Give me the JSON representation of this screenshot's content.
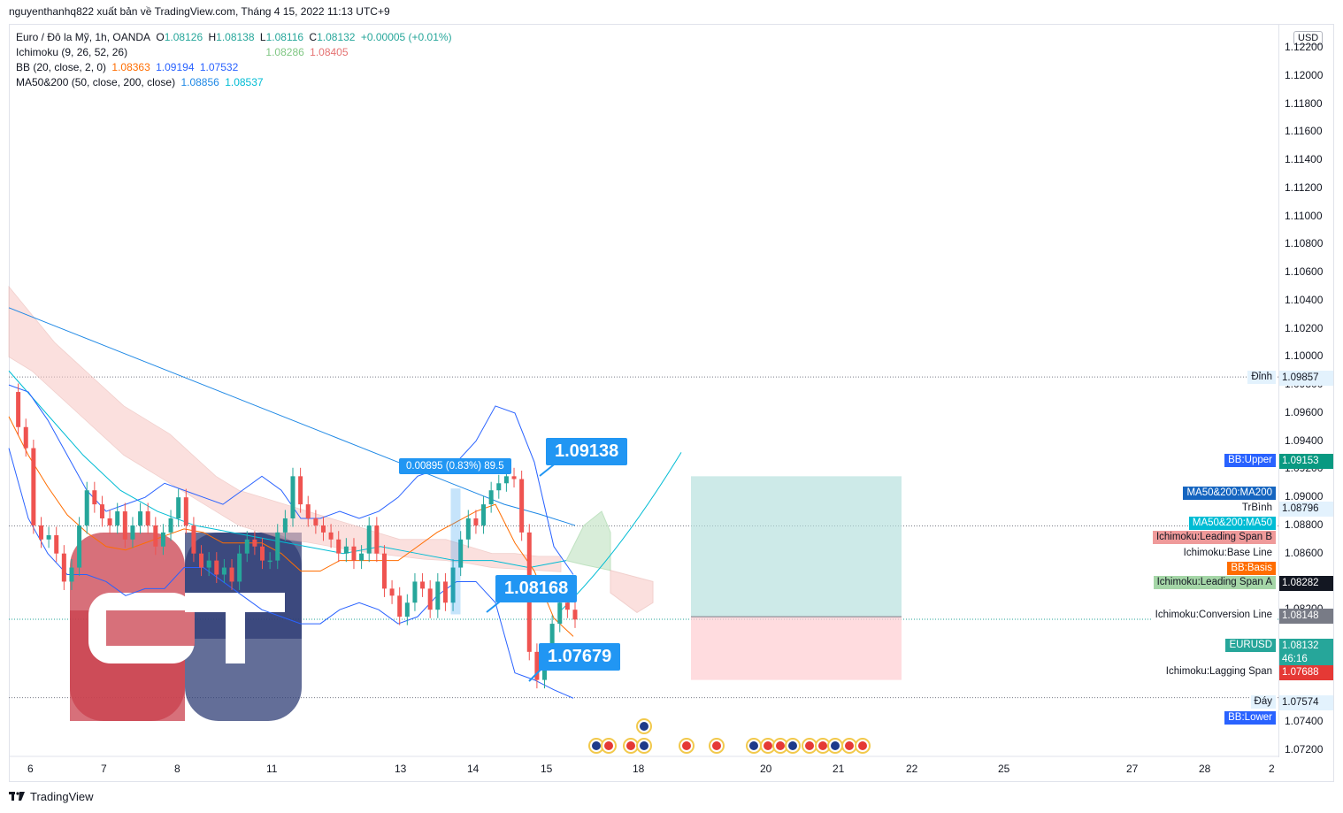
{
  "header": {
    "publisher_line": "nguyenthanhq822 xuất bản về TradingView.com, Tháng 4 15, 2022 11:13 UTC+9"
  },
  "legend": {
    "symbol": "Euro / Đô la Mỹ, 1h, OANDA",
    "ohlc": {
      "o_label": "O",
      "o": "1.08126",
      "h_label": "H",
      "h": "1.08138",
      "l_label": "L",
      "l": "1.08116",
      "c_label": "C",
      "c": "1.08132",
      "change": "+0.00005 (+0.01%)"
    },
    "ichimoku": {
      "label": "Ichimoku (9, 26, 52, 26)",
      "v1": "1.08286",
      "v2": "1.08405"
    },
    "bb": {
      "label": "BB (20, close, 2, 0)",
      "v1": "1.08363",
      "v2": "1.09194",
      "v3": "1.07532"
    },
    "ma": {
      "label": "MA50&200 (50, close, 200, close)",
      "v1": "1.08856",
      "v2": "1.08537"
    }
  },
  "colors": {
    "up": "#26a69a",
    "down": "#ef5350",
    "bb": "#2962ff",
    "ma50": "#00bcd4",
    "ma200": "#1e88e5",
    "cloud_red": "#f8c8c4",
    "cloud_green": "#c8e6c9",
    "accent": "#2196f3"
  },
  "axis": {
    "currency": "USD",
    "price_ticks": [
      "1.12200",
      "1.12000",
      "1.11800",
      "1.11600",
      "1.11400",
      "1.11200",
      "1.11000",
      "1.10800",
      "1.10600",
      "1.10400",
      "1.10200",
      "1.10000",
      "1.09800",
      "1.09600",
      "1.09400",
      "1.09200",
      "1.09000",
      "1.08800",
      "1.08600",
      "1.08400",
      "1.08200",
      "1.07800",
      "1.07400",
      "1.07200"
    ],
    "time_ticks": [
      "6",
      "7",
      "8",
      "11",
      "13",
      "14",
      "15",
      "18",
      "20",
      "21",
      "22",
      "25",
      "27",
      "28",
      "2"
    ]
  },
  "price_tags": [
    {
      "name": "high-tag",
      "label": "Đỉnh",
      "value": "1.09857"
    },
    {
      "name": "bb-upper-tag",
      "label": "BB:Upper",
      "value": "1.09153"
    },
    {
      "name": "ma200-tag",
      "label": "MA50&200:MA200",
      "value": ""
    },
    {
      "name": "avg-tag",
      "label": "TrBình",
      "value": "1.08796"
    },
    {
      "name": "ma50-tag",
      "label": "MA50&200:MA50",
      "value": ""
    },
    {
      "name": "span-b-tag",
      "label": "Ichimoku:Leading Span B",
      "value": ""
    },
    {
      "name": "base-line-tag",
      "label": "Ichimoku:Base Line",
      "value": ""
    },
    {
      "name": "bb-basis-tag",
      "label": "BB:Basis",
      "value": ""
    },
    {
      "name": "span-a-tag",
      "label": "Ichimoku:Leading Span A",
      "value": "1.08282"
    },
    {
      "name": "conversion-tag",
      "label": "Ichimoku:Conversion Line",
      "value": "1.08148"
    },
    {
      "name": "eurusd-tag",
      "label": "EURUSD",
      "value": "1.08132",
      "countdown": "46:16"
    },
    {
      "name": "lagging-tag",
      "label": "Ichimoku:Lagging Span",
      "value": "1.07688"
    },
    {
      "name": "low-tag",
      "label": "Đáy",
      "value": "1.07574"
    },
    {
      "name": "bb-lower-tag",
      "label": "BB:Lower",
      "value": ""
    }
  ],
  "annotations": {
    "measure": "0.00895 (0.83%) 89.5",
    "callout_high": "1.09138",
    "callout_mid": "1.08168",
    "callout_low": "1.07679"
  },
  "footer": {
    "brand": "TradingView"
  },
  "chart_data": {
    "type": "candlestick",
    "symbol": "EURUSD",
    "timeframe": "1h",
    "ylim": [
      1.0715,
      1.1225
    ],
    "x_ticks": [
      "6",
      "7",
      "8",
      "11",
      "13",
      "14",
      "15",
      "18",
      "20",
      "21",
      "22",
      "25",
      "27",
      "28",
      "2"
    ],
    "close_path": [
      1.0975,
      1.095,
      1.0935,
      1.088,
      1.087,
      1.0873,
      1.086,
      1.084,
      1.085,
      1.088,
      1.0905,
      1.0895,
      1.0885,
      1.088,
      1.089,
      1.087,
      1.088,
      1.089,
      1.088,
      1.0865,
      1.0875,
      1.0885,
      1.09,
      1.088,
      1.086,
      1.085,
      1.0855,
      1.0845,
      1.085,
      1.084,
      1.086,
      1.087,
      1.0865,
      1.0855,
      1.0855,
      1.0875,
      1.0885,
      1.0915,
      1.0895,
      1.0885,
      1.088,
      1.0875,
      1.087,
      1.086,
      1.0865,
      1.0855,
      1.086,
      1.088,
      1.086,
      1.0835,
      1.083,
      1.0815,
      1.0825,
      1.084,
      1.0835,
      1.082,
      1.084,
      1.0825,
      1.085,
      1.087,
      1.0885,
      1.088,
      1.0895,
      1.0905,
      1.091,
      1.0915,
      1.0913,
      1.0875,
      1.079,
      1.077,
      1.0785,
      1.081,
      1.0825,
      1.082,
      1.0813
    ],
    "levels": {
      "high": 1.09857,
      "low": 1.07574,
      "avg": 1.08796,
      "last": 1.08132
    },
    "bb_upper": [
      1.098,
      1.0975,
      1.0955,
      1.093,
      1.0905,
      1.089,
      1.0895,
      1.09,
      1.091,
      1.0905,
      1.09,
      1.0895,
      1.0905,
      1.0915,
      1.0905,
      1.0885,
      1.0885,
      1.089,
      1.0885,
      1.089,
      1.09,
      1.0915,
      1.092,
      1.0925,
      1.094,
      1.0965,
      1.096,
      1.0925,
      1.0865,
      1.0845
    ],
    "bb_lower": [
      1.0935,
      1.0885,
      1.086,
      1.0845,
      1.0845,
      1.084,
      1.083,
      1.0835,
      1.0835,
      1.085,
      1.085,
      1.084,
      1.083,
      1.082,
      1.0815,
      1.081,
      1.081,
      1.082,
      1.0825,
      1.082,
      1.081,
      1.0815,
      1.083,
      1.084,
      1.084,
      1.0825,
      1.0775,
      1.077,
      1.0763,
      1.0757
    ],
    "ma200": [
      1.1035,
      1.1025,
      1.1015,
      1.1005,
      1.0995,
      1.0985,
      1.0975,
      1.0965,
      1.0955,
      1.0945,
      1.0935,
      1.0925,
      1.0915,
      1.0905,
      1.0895,
      1.0888,
      1.088
    ],
    "ma50": [
      1.099,
      1.096,
      1.093,
      1.0905,
      1.089,
      1.088,
      1.0875,
      1.087,
      1.0865,
      1.086,
      1.0865,
      1.086,
      1.0855,
      1.0855,
      1.085,
      1.0855
    ],
    "position": {
      "entry": 1.0815,
      "target": 1.0915,
      "stop": 1.077
    }
  }
}
